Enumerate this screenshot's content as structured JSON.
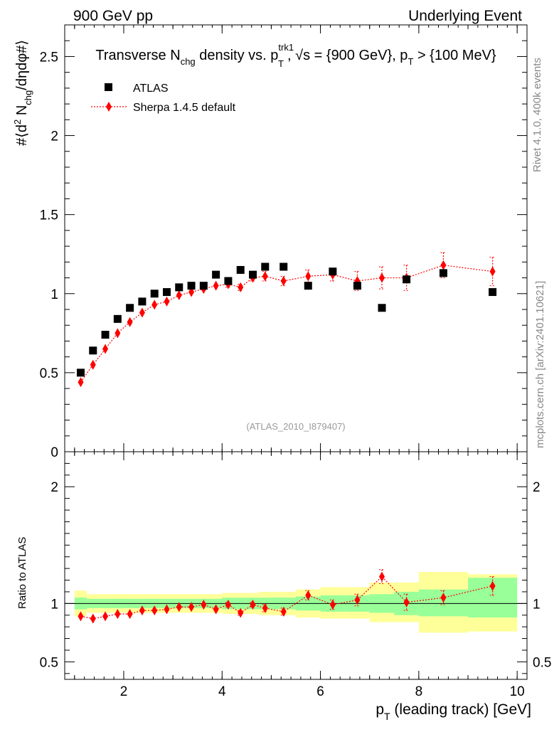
{
  "header": {
    "left": "900 GeV pp",
    "right": "Underlying Event"
  },
  "side_labels": {
    "rivet": "Rivet 4.1.0,  400k events",
    "mcplots": "mcplots.cern.ch [arXiv:2401.10621]"
  },
  "plot_title": {
    "part1": "Transverse N",
    "sub1": "chg",
    "part2": " density vs. p",
    "sup2": "trk1",
    "sub2": "T",
    "part3": ", √s = {900 GeV}, p",
    "sub3": "T",
    "part4": " > {100 MeV}"
  },
  "y_axis_main": {
    "l1": "#⟨d",
    "sup": "2",
    "l2": " N",
    "sub": "chg",
    "l3": "/dηdφ#⟩"
  },
  "y_axis_ratio": "Ratio to ATLAS",
  "x_axis": {
    "p": "p",
    "sub": "T",
    "rest": " (leading track) [GeV]"
  },
  "analysis_id": "(ATLAS_2010_I879407)",
  "colors": {
    "data": "#000000",
    "mc": "#ff0000",
    "band_inner": "#99ff99",
    "band_outer": "#ffff99"
  },
  "chart_data": {
    "type": "scatter",
    "title": "Transverse Nchg density vs. pT trk1, √s = {900 GeV}, pT > {100 MeV}",
    "xlabel": "pT (leading track) [GeV]",
    "ylabel": "#⟨d2 Nchg/dηdφ#⟩",
    "xlim": [
      0.8,
      10.2
    ],
    "ylim": [
      0,
      2.7
    ],
    "ratio_ylim": [
      0.35,
      2.3
    ],
    "x_ticks": [
      2,
      4,
      6,
      8,
      10
    ],
    "x_tick_labels": [
      "2",
      "4",
      "6",
      "8",
      "10"
    ],
    "y_ticks": [
      0,
      0.5,
      1,
      1.5,
      2,
      2.5
    ],
    "y_tick_labels": [
      "0",
      "0.5",
      "1",
      "1.5",
      "2",
      "2.5"
    ],
    "ratio_ticks": [
      0.5,
      1,
      2
    ],
    "ratio_tick_labels": [
      "0.5",
      "1",
      "2"
    ],
    "legend": [
      "ATLAS",
      "Sherpa 1.4.5 default"
    ],
    "legend_position": "top-left",
    "x": [
      1.125,
      1.375,
      1.625,
      1.875,
      2.125,
      2.375,
      2.625,
      2.875,
      3.125,
      3.375,
      3.625,
      3.875,
      4.125,
      4.375,
      4.625,
      4.875,
      5.25,
      5.75,
      6.25,
      6.75,
      7.25,
      7.75,
      8.5,
      9.5
    ],
    "series": [
      {
        "name": "ATLAS",
        "values": [
          0.5,
          0.64,
          0.74,
          0.84,
          0.91,
          0.95,
          1.0,
          1.01,
          1.04,
          1.05,
          1.05,
          1.12,
          1.08,
          1.15,
          1.12,
          1.17,
          1.17,
          1.05,
          1.14,
          1.05,
          0.91,
          1.09,
          1.13,
          1.01
        ]
      },
      {
        "name": "Sherpa 1.4.5 default",
        "values": [
          0.44,
          0.55,
          0.65,
          0.75,
          0.82,
          0.88,
          0.93,
          0.95,
          0.99,
          1.01,
          1.03,
          1.05,
          1.06,
          1.04,
          1.1,
          1.11,
          1.08,
          1.11,
          1.12,
          1.08,
          1.1,
          1.1,
          1.18,
          1.14
        ],
        "errors": [
          0.01,
          0.01,
          0.01,
          0.01,
          0.01,
          0.01,
          0.01,
          0.01,
          0.01,
          0.01,
          0.01,
          0.01,
          0.02,
          0.02,
          0.02,
          0.03,
          0.03,
          0.04,
          0.04,
          0.06,
          0.07,
          0.08,
          0.08,
          0.09
        ]
      }
    ],
    "ratio": {
      "values": [
        0.89,
        0.87,
        0.89,
        0.91,
        0.91,
        0.94,
        0.94,
        0.95,
        0.97,
        0.97,
        0.99,
        0.95,
        0.99,
        0.92,
        0.99,
        0.96,
        0.93,
        1.07,
        0.99,
        1.03,
        1.23,
        1.01,
        1.05,
        1.15
      ],
      "errors": [
        0.01,
        0.01,
        0.01,
        0.01,
        0.01,
        0.01,
        0.01,
        0.01,
        0.01,
        0.01,
        0.01,
        0.01,
        0.02,
        0.02,
        0.02,
        0.03,
        0.03,
        0.04,
        0.04,
        0.05,
        0.06,
        0.07,
        0.06,
        0.08
      ],
      "band_edges": [
        1.0,
        1.25,
        1.5,
        1.75,
        2.0,
        2.25,
        2.5,
        2.75,
        3.0,
        3.25,
        3.5,
        3.75,
        4.0,
        4.25,
        4.5,
        4.75,
        5.0,
        5.5,
        6.0,
        6.5,
        7.0,
        7.5,
        8.0,
        9.0,
        10.0
      ],
      "inner": [
        [
          0.95,
          1.05
        ],
        [
          0.96,
          1.04
        ],
        [
          0.96,
          1.04
        ],
        [
          0.96,
          1.04
        ],
        [
          0.96,
          1.04
        ],
        [
          0.96,
          1.04
        ],
        [
          0.96,
          1.04
        ],
        [
          0.96,
          1.04
        ],
        [
          0.96,
          1.04
        ],
        [
          0.96,
          1.04
        ],
        [
          0.96,
          1.04
        ],
        [
          0.96,
          1.04
        ],
        [
          0.95,
          1.05
        ],
        [
          0.95,
          1.05
        ],
        [
          0.95,
          1.05
        ],
        [
          0.95,
          1.05
        ],
        [
          0.95,
          1.05
        ],
        [
          0.94,
          1.06
        ],
        [
          0.93,
          1.07
        ],
        [
          0.93,
          1.07
        ],
        [
          0.92,
          1.08
        ],
        [
          0.9,
          1.1
        ],
        [
          0.89,
          1.12
        ],
        [
          0.88,
          1.22
        ],
        [
          0.86,
          1.2
        ]
      ],
      "outer": [
        [
          0.89,
          1.11
        ],
        [
          0.92,
          1.08
        ],
        [
          0.92,
          1.08
        ],
        [
          0.92,
          1.08
        ],
        [
          0.92,
          1.08
        ],
        [
          0.92,
          1.08
        ],
        [
          0.92,
          1.08
        ],
        [
          0.92,
          1.08
        ],
        [
          0.92,
          1.08
        ],
        [
          0.92,
          1.08
        ],
        [
          0.92,
          1.08
        ],
        [
          0.92,
          1.08
        ],
        [
          0.91,
          1.09
        ],
        [
          0.91,
          1.09
        ],
        [
          0.91,
          1.09
        ],
        [
          0.9,
          1.1
        ],
        [
          0.9,
          1.1
        ],
        [
          0.88,
          1.12
        ],
        [
          0.87,
          1.14
        ],
        [
          0.87,
          1.14
        ],
        [
          0.84,
          1.18
        ],
        [
          0.84,
          1.18
        ],
        [
          0.75,
          1.27
        ],
        [
          0.76,
          1.25
        ],
        [
          0.68,
          1.34
        ]
      ]
    }
  }
}
